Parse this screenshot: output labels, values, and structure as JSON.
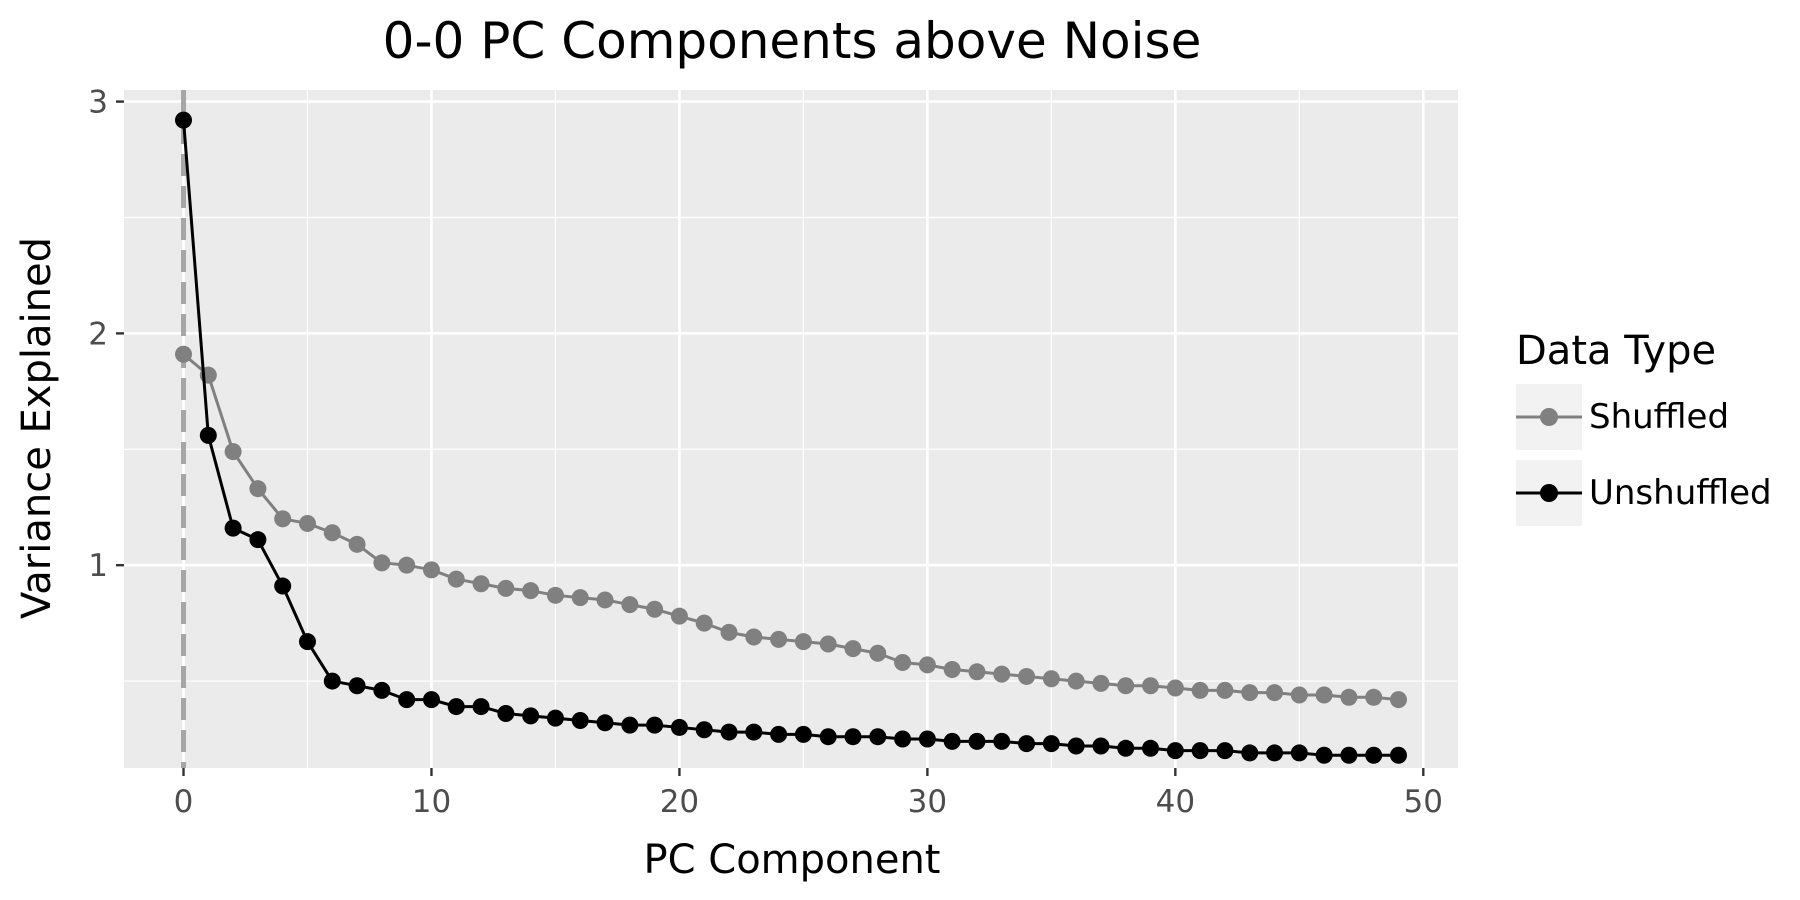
{
  "chart_data": {
    "type": "line",
    "title": "0-0 PC Components above Noise",
    "xlabel": "PC Component",
    "ylabel": "Variance Explained",
    "xlim": [
      -2.4,
      51.4
    ],
    "ylim": [
      0.125,
      3.05
    ],
    "x_ticks": [
      0,
      10,
      20,
      30,
      40,
      50
    ],
    "x_tick_labels": [
      "0",
      "10",
      "20",
      "30",
      "40",
      "50"
    ],
    "y_ticks": [
      1,
      2,
      3
    ],
    "y_tick_labels": [
      "1",
      "2",
      "3"
    ],
    "grid": true,
    "vline_x": 0,
    "legend": {
      "title": "Data Type",
      "position": "right",
      "entries": [
        "Shuffled",
        "Unshuffled"
      ]
    },
    "x": [
      0,
      1,
      2,
      3,
      4,
      5,
      6,
      7,
      8,
      9,
      10,
      11,
      12,
      13,
      14,
      15,
      16,
      17,
      18,
      19,
      20,
      21,
      22,
      23,
      24,
      25,
      26,
      27,
      28,
      29,
      30,
      31,
      32,
      33,
      34,
      35,
      36,
      37,
      38,
      39,
      40,
      41,
      42,
      43,
      44,
      45,
      46,
      47,
      48,
      49
    ],
    "series": [
      {
        "name": "Shuffled",
        "color": "#808080",
        "values": [
          1.91,
          1.82,
          1.49,
          1.33,
          1.2,
          1.18,
          1.14,
          1.09,
          1.01,
          1.0,
          0.98,
          0.94,
          0.92,
          0.9,
          0.89,
          0.87,
          0.86,
          0.85,
          0.83,
          0.81,
          0.78,
          0.75,
          0.71,
          0.69,
          0.68,
          0.67,
          0.66,
          0.64,
          0.62,
          0.58,
          0.57,
          0.55,
          0.54,
          0.53,
          0.52,
          0.51,
          0.5,
          0.49,
          0.48,
          0.48,
          0.47,
          0.46,
          0.46,
          0.45,
          0.45,
          0.44,
          0.44,
          0.43,
          0.43,
          0.42
        ]
      },
      {
        "name": "Unshuffled",
        "color": "#000000",
        "values": [
          2.92,
          1.56,
          1.16,
          1.11,
          0.91,
          0.67,
          0.5,
          0.48,
          0.46,
          0.42,
          0.42,
          0.39,
          0.39,
          0.36,
          0.35,
          0.34,
          0.33,
          0.32,
          0.31,
          0.31,
          0.3,
          0.29,
          0.28,
          0.28,
          0.27,
          0.27,
          0.26,
          0.26,
          0.26,
          0.25,
          0.25,
          0.24,
          0.24,
          0.24,
          0.23,
          0.23,
          0.22,
          0.22,
          0.21,
          0.21,
          0.2,
          0.2,
          0.2,
          0.19,
          0.19,
          0.19,
          0.18,
          0.18,
          0.18,
          0.18
        ]
      }
    ]
  }
}
